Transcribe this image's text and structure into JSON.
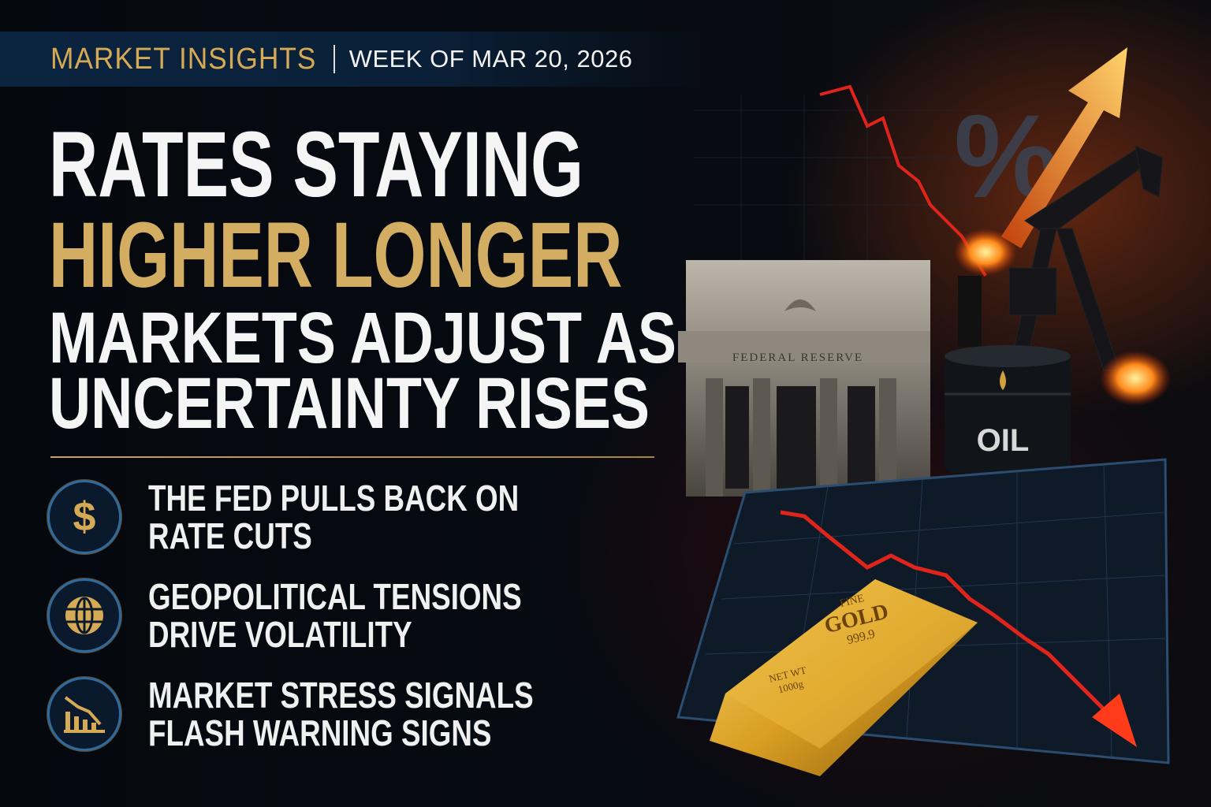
{
  "header": {
    "kicker": "MARKET INSIGHTS",
    "week": "WEEK OF MAR 20, 2026"
  },
  "headline": {
    "line1": "RATES STAYING",
    "line2": "HIGHER LONGER",
    "line3": "MARKETS ADJUST AS",
    "line4": "UNCERTAINTY RISES"
  },
  "bullets": [
    {
      "icon": "dollar-icon",
      "line1": "THE FED PULLS BACK ON",
      "line2": "RATE CUTS"
    },
    {
      "icon": "globe-icon",
      "line1": "GEOPOLITICAL TENSIONS",
      "line2": "DRIVE VOLATILITY"
    },
    {
      "icon": "declining-chart-icon",
      "line1": "MARKET STRESS SIGNALS",
      "line2": "FLASH WARNING SIGNS"
    }
  ],
  "illustration": {
    "building_label": "FEDERAL  RESERVE",
    "barrel_label": "OIL",
    "percent": "%",
    "gold_fine": "FINE",
    "gold_label": "GOLD",
    "gold_purity": "999.9",
    "gold_weight_1": "NET WT",
    "gold_weight_2": "1000g"
  },
  "colors": {
    "gold": "#d3ad62",
    "banner": "#0b2440",
    "down_red": "#e0241b",
    "up_orange": "#f39a2a"
  }
}
